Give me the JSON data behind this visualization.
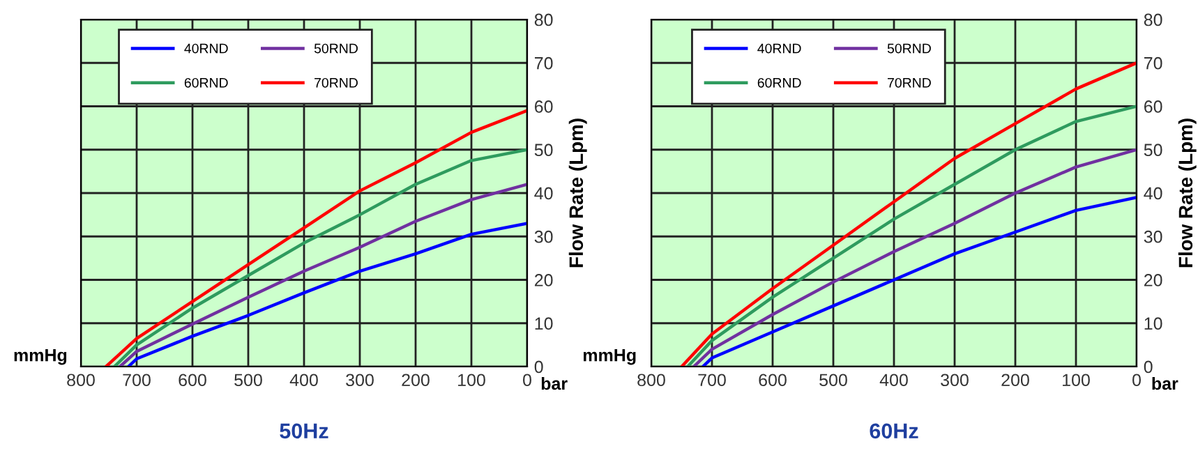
{
  "chart_data": [
    {
      "type": "line",
      "title": "50Hz",
      "xlabel": "mmHg",
      "ylabel": "Flow Rate (Lpm)",
      "annotations": [
        "bar"
      ],
      "xlim": [
        800,
        0
      ],
      "ylim": [
        0,
        80
      ],
      "xticks": [
        800,
        700,
        600,
        500,
        400,
        300,
        200,
        100,
        0
      ],
      "yticks": [
        0,
        10,
        20,
        30,
        40,
        50,
        60,
        70,
        80
      ],
      "grid": true,
      "legend": "top left",
      "series": [
        {
          "name": "40RND",
          "color": "#0000ff",
          "x": [
            715,
            700,
            600,
            500,
            400,
            300,
            200,
            100,
            0
          ],
          "values": [
            0,
            1.8,
            7,
            11.8,
            17,
            22,
            26,
            30.5,
            33
          ]
        },
        {
          "name": "50RND",
          "color": "#7030a0",
          "x": [
            730,
            700,
            600,
            500,
            400,
            300,
            200,
            100,
            0
          ],
          "values": [
            0,
            3.5,
            9.8,
            16,
            22,
            27.5,
            33.5,
            38.5,
            42
          ]
        },
        {
          "name": "60RND",
          "color": "#2e9b5e",
          "x": [
            740,
            700,
            600,
            500,
            400,
            300,
            200,
            100,
            0
          ],
          "values": [
            0,
            5,
            13.5,
            21,
            28.5,
            35,
            42,
            47.5,
            50
          ]
        },
        {
          "name": "70RND",
          "color": "#ff0000",
          "x": [
            755,
            700,
            600,
            500,
            400,
            300,
            200,
            100,
            0
          ],
          "values": [
            0,
            6.5,
            15,
            23.5,
            32,
            40.5,
            47,
            54,
            59
          ]
        }
      ]
    },
    {
      "type": "line",
      "title": "60Hz",
      "xlabel": "mmHg",
      "ylabel": "Flow Rate (Lpm)",
      "annotations": [
        "bar"
      ],
      "xlim": [
        800,
        0
      ],
      "ylim": [
        0,
        80
      ],
      "xticks": [
        800,
        700,
        600,
        500,
        400,
        300,
        200,
        100,
        0
      ],
      "yticks": [
        0,
        10,
        20,
        30,
        40,
        50,
        60,
        70,
        80
      ],
      "grid": true,
      "legend": "top left",
      "series": [
        {
          "name": "40RND",
          "color": "#0000ff",
          "x": [
            715,
            700,
            600,
            500,
            400,
            300,
            200,
            100,
            0
          ],
          "values": [
            0,
            2,
            8,
            14,
            20,
            26,
            31,
            36,
            39
          ]
        },
        {
          "name": "50RND",
          "color": "#7030a0",
          "x": [
            730,
            700,
            600,
            500,
            400,
            300,
            200,
            100,
            0
          ],
          "values": [
            0,
            4,
            12,
            19.5,
            26.5,
            33,
            40,
            46,
            50
          ]
        },
        {
          "name": "60RND",
          "color": "#2e9b5e",
          "x": [
            740,
            700,
            600,
            500,
            400,
            300,
            200,
            100,
            0
          ],
          "values": [
            0,
            6,
            16,
            25,
            34,
            42,
            50,
            56.5,
            60
          ]
        },
        {
          "name": "70RND",
          "color": "#ff0000",
          "x": [
            750,
            700,
            600,
            500,
            400,
            300,
            200,
            100,
            0
          ],
          "values": [
            0,
            7.5,
            18,
            28,
            38,
            48,
            56,
            64,
            70
          ]
        }
      ]
    }
  ]
}
